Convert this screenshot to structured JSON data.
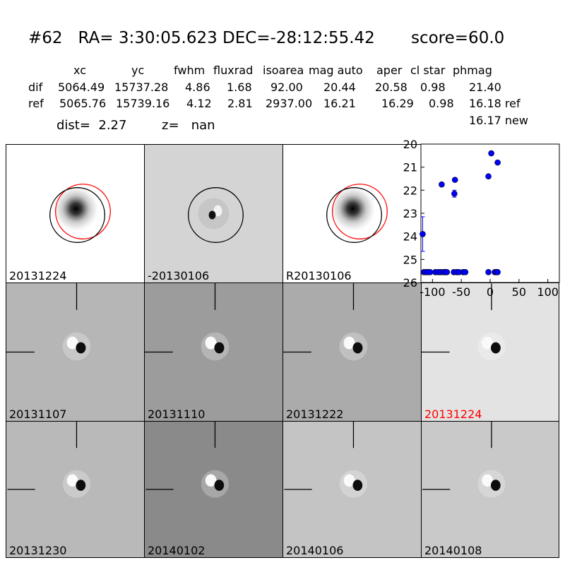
{
  "header": {
    "id": "#62",
    "ra": "RA= 3:30:05.623",
    "dec": "DEC=-28:12:55.42",
    "score": "score=60.0"
  },
  "table": {
    "columns": [
      "xc",
      "yc",
      "fwhm",
      "fluxrad",
      "isoarea",
      "mag auto",
      "aper",
      "cl star",
      "phmag"
    ],
    "rows": [
      {
        "label": "dif",
        "values": [
          "5064.49",
          "15737.28",
          "4.86",
          "1.68",
          "92.00",
          "20.44",
          "20.58",
          "0.98",
          "21.40"
        ]
      },
      {
        "label": "ref",
        "values": [
          "5065.76",
          "15739.16",
          "4.12",
          "2.81",
          "2937.00",
          "16.21",
          "16.29",
          "0.98",
          "16.18 ref"
        ]
      }
    ],
    "extra_phmag": "16.17 new",
    "dist": "dist=  2.27",
    "z": "z=   nan"
  },
  "panels": [
    {
      "label": "20131224",
      "bg": "#ffffff",
      "kind": "source"
    },
    {
      "label": "-20130106",
      "bg": "#d4d4d4",
      "kind": "diff"
    },
    {
      "label": "R20130106",
      "bg": "#ffffff",
      "kind": "source"
    },
    {
      "label": "20131107",
      "bg": "#b6b6b6",
      "kind": "dipole"
    },
    {
      "label": "20131110",
      "bg": "#9c9c9c",
      "kind": "dipole"
    },
    {
      "label": "20131222",
      "bg": "#ababab",
      "kind": "dipole"
    },
    {
      "label": "20131224",
      "bg": "#e3e3e3",
      "kind": "dipole",
      "highlight": true
    },
    {
      "label": "20131230",
      "bg": "#b9b9b9",
      "kind": "dipole"
    },
    {
      "label": "20140102",
      "bg": "#8a8a8a",
      "kind": "dipole"
    },
    {
      "label": "20140106",
      "bg": "#c4c4c4",
      "kind": "dipole"
    },
    {
      "label": "20140108",
      "bg": "#c9c9c9",
      "kind": "dipole"
    }
  ],
  "chart_data": {
    "type": "scatter",
    "title": "",
    "xlabel": "",
    "ylabel": "",
    "xlim": [
      -120,
      120
    ],
    "ylim": [
      26,
      20
    ],
    "y_inverted": true,
    "xticks": [
      -100,
      -50,
      0,
      50,
      100
    ],
    "yticks": [
      20,
      21,
      22,
      23,
      24,
      25,
      26
    ],
    "marker_color": "#0000ff",
    "points": [
      {
        "x": -117,
        "y": 23.9,
        "err": 0.75
      },
      {
        "x": -115,
        "y": 25.55
      },
      {
        "x": -111,
        "y": 25.55
      },
      {
        "x": -108,
        "y": 25.55
      },
      {
        "x": -104,
        "y": 25.55
      },
      {
        "x": -95,
        "y": 25.55
      },
      {
        "x": -90,
        "y": 25.55
      },
      {
        "x": -86,
        "y": 25.55
      },
      {
        "x": -81,
        "y": 25.55
      },
      {
        "x": -78,
        "y": 25.55
      },
      {
        "x": -75,
        "y": 25.55
      },
      {
        "x": -84,
        "y": 21.75
      },
      {
        "x": -62,
        "y": 22.15,
        "err": 0.15
      },
      {
        "x": -61,
        "y": 21.55
      },
      {
        "x": -63,
        "y": 25.55
      },
      {
        "x": -58,
        "y": 25.55
      },
      {
        "x": -54,
        "y": 25.55
      },
      {
        "x": -47,
        "y": 25.55
      },
      {
        "x": -43,
        "y": 25.55
      },
      {
        "x": -3,
        "y": 21.4
      },
      {
        "x": 2,
        "y": 20.4
      },
      {
        "x": 13,
        "y": 20.8
      },
      {
        "x": -3,
        "y": 25.55
      },
      {
        "x": 8,
        "y": 25.55
      },
      {
        "x": 11,
        "y": 25.55
      },
      {
        "x": 13,
        "y": 25.55
      }
    ]
  }
}
